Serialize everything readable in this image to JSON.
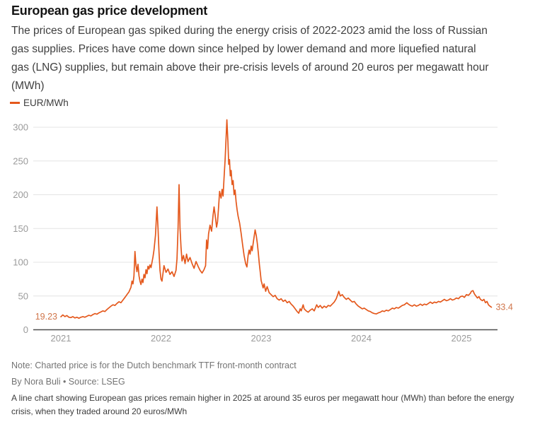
{
  "header": {
    "title": "European gas price development",
    "description": "The prices of European gas spiked during the energy crisis of 2022-2023 amid the loss of Russian gas supplies. Prices have come down since helped by lower demand and more liquefied natural gas (LNG) supplies, but remain above their pre-crisis levels of around 20 euros per megawatt hour (MWh)"
  },
  "legend": {
    "label": "EUR/MWh"
  },
  "colors": {
    "line": "#E4581C",
    "value_label": "#D0754A",
    "grid": "#E4E4E4",
    "axis": "#4D4D4D",
    "tick_text": "#9A9A9A"
  },
  "chart_data": {
    "type": "line",
    "title": "European gas price development",
    "series_name": "EUR/MWh",
    "unit": "EUR/MWh",
    "xlabel": "",
    "ylabel": "EUR/MWh",
    "x_ticks": [
      2021,
      2022,
      2023,
      2024,
      2025
    ],
    "y_ticks": [
      0,
      50,
      100,
      150,
      200,
      250,
      300
    ],
    "ylim": [
      0,
      300
    ],
    "xlim": [
      2021.0,
      2025.35
    ],
    "grid": true,
    "legend_position": "top-left",
    "start_label": "19.23",
    "end_label": "33.4",
    "points": [
      [
        2021.0,
        19.23
      ],
      [
        2021.02,
        22
      ],
      [
        2021.04,
        19.5
      ],
      [
        2021.06,
        21
      ],
      [
        2021.08,
        18.5
      ],
      [
        2021.1,
        18
      ],
      [
        2021.12,
        19.5
      ],
      [
        2021.14,
        17.5
      ],
      [
        2021.16,
        18.5
      ],
      [
        2021.18,
        17
      ],
      [
        2021.2,
        18.5
      ],
      [
        2021.22,
        19.5
      ],
      [
        2021.24,
        18.5
      ],
      [
        2021.26,
        20
      ],
      [
        2021.28,
        21.5
      ],
      [
        2021.3,
        20.5
      ],
      [
        2021.32,
        22.5
      ],
      [
        2021.34,
        24
      ],
      [
        2021.36,
        23
      ],
      [
        2021.38,
        25
      ],
      [
        2021.4,
        26.5
      ],
      [
        2021.42,
        28
      ],
      [
        2021.44,
        27
      ],
      [
        2021.46,
        30
      ],
      [
        2021.48,
        32.5
      ],
      [
        2021.5,
        35
      ],
      [
        2021.52,
        37
      ],
      [
        2021.54,
        36
      ],
      [
        2021.56,
        39
      ],
      [
        2021.58,
        41.5
      ],
      [
        2021.6,
        40
      ],
      [
        2021.62,
        44
      ],
      [
        2021.64,
        48
      ],
      [
        2021.66,
        52
      ],
      [
        2021.68,
        56
      ],
      [
        2021.7,
        63
      ],
      [
        2021.71,
        72
      ],
      [
        2021.72,
        68
      ],
      [
        2021.73,
        80
      ],
      [
        2021.74,
        116
      ],
      [
        2021.75,
        96
      ],
      [
        2021.76,
        86
      ],
      [
        2021.77,
        97
      ],
      [
        2021.78,
        80
      ],
      [
        2021.79,
        72
      ],
      [
        2021.8,
        67
      ],
      [
        2021.81,
        75
      ],
      [
        2021.82,
        70
      ],
      [
        2021.83,
        82
      ],
      [
        2021.84,
        77
      ],
      [
        2021.85,
        89
      ],
      [
        2021.86,
        83
      ],
      [
        2021.87,
        94
      ],
      [
        2021.88,
        90
      ],
      [
        2021.89,
        96
      ],
      [
        2021.9,
        92
      ],
      [
        2021.91,
        100
      ],
      [
        2021.92,
        108
      ],
      [
        2021.93,
        118
      ],
      [
        2021.945,
        140
      ],
      [
        2021.96,
        182
      ],
      [
        2021.97,
        150
      ],
      [
        2021.98,
        115
      ],
      [
        2021.99,
        88
      ],
      [
        2022.0,
        75
      ],
      [
        2022.01,
        72
      ],
      [
        2022.03,
        95
      ],
      [
        2022.05,
        85
      ],
      [
        2022.07,
        90
      ],
      [
        2022.09,
        82
      ],
      [
        2022.11,
        86
      ],
      [
        2022.13,
        79
      ],
      [
        2022.15,
        88
      ],
      [
        2022.16,
        105
      ],
      [
        2022.17,
        150
      ],
      [
        2022.18,
        215
      ],
      [
        2022.19,
        150
      ],
      [
        2022.2,
        122
      ],
      [
        2022.21,
        102
      ],
      [
        2022.225,
        110
      ],
      [
        2022.24,
        98
      ],
      [
        2022.255,
        112
      ],
      [
        2022.27,
        101
      ],
      [
        2022.29,
        107
      ],
      [
        2022.31,
        98
      ],
      [
        2022.33,
        91
      ],
      [
        2022.35,
        101
      ],
      [
        2022.37,
        94
      ],
      [
        2022.39,
        88
      ],
      [
        2022.41,
        84
      ],
      [
        2022.43,
        89
      ],
      [
        2022.445,
        95
      ],
      [
        2022.455,
        133
      ],
      [
        2022.465,
        120
      ],
      [
        2022.475,
        142
      ],
      [
        2022.49,
        155
      ],
      [
        2022.505,
        146
      ],
      [
        2022.52,
        170
      ],
      [
        2022.53,
        182
      ],
      [
        2022.545,
        165
      ],
      [
        2022.555,
        152
      ],
      [
        2022.565,
        160
      ],
      [
        2022.575,
        182
      ],
      [
        2022.585,
        205
      ],
      [
        2022.6,
        195
      ],
      [
        2022.61,
        208
      ],
      [
        2022.62,
        198
      ],
      [
        2022.63,
        225
      ],
      [
        2022.64,
        252
      ],
      [
        2022.65,
        285
      ],
      [
        2022.658,
        311
      ],
      [
        2022.668,
        280
      ],
      [
        2022.676,
        245
      ],
      [
        2022.684,
        252
      ],
      [
        2022.692,
        228
      ],
      [
        2022.7,
        236
      ],
      [
        2022.71,
        215
      ],
      [
        2022.72,
        221
      ],
      [
        2022.73,
        200
      ],
      [
        2022.74,
        207
      ],
      [
        2022.75,
        190
      ],
      [
        2022.76,
        178
      ],
      [
        2022.77,
        168
      ],
      [
        2022.785,
        158
      ],
      [
        2022.8,
        143
      ],
      [
        2022.815,
        126
      ],
      [
        2022.83,
        110
      ],
      [
        2022.845,
        98
      ],
      [
        2022.858,
        93
      ],
      [
        2022.87,
        110
      ],
      [
        2022.88,
        118
      ],
      [
        2022.89,
        112
      ],
      [
        2022.9,
        124
      ],
      [
        2022.91,
        117
      ],
      [
        2022.925,
        133
      ],
      [
        2022.94,
        148
      ],
      [
        2022.952,
        139
      ],
      [
        2022.962,
        128
      ],
      [
        2022.972,
        114
      ],
      [
        2022.982,
        97
      ],
      [
        2022.992,
        84
      ],
      [
        2023.0,
        73
      ],
      [
        2023.02,
        62
      ],
      [
        2023.03,
        68
      ],
      [
        2023.045,
        57
      ],
      [
        2023.06,
        64
      ],
      [
        2023.08,
        55
      ],
      [
        2023.1,
        52
      ],
      [
        2023.12,
        49
      ],
      [
        2023.14,
        51
      ],
      [
        2023.16,
        46
      ],
      [
        2023.18,
        44
      ],
      [
        2023.2,
        46
      ],
      [
        2023.22,
        42
      ],
      [
        2023.24,
        44
      ],
      [
        2023.26,
        40
      ],
      [
        2023.28,
        42
      ],
      [
        2023.3,
        38
      ],
      [
        2023.32,
        35
      ],
      [
        2023.34,
        31
      ],
      [
        2023.36,
        27
      ],
      [
        2023.375,
        24.5
      ],
      [
        2023.39,
        31
      ],
      [
        2023.4,
        28
      ],
      [
        2023.42,
        37
      ],
      [
        2023.43,
        31
      ],
      [
        2023.45,
        28
      ],
      [
        2023.47,
        26
      ],
      [
        2023.49,
        29
      ],
      [
        2023.51,
        31
      ],
      [
        2023.53,
        28
      ],
      [
        2023.555,
        37
      ],
      [
        2023.57,
        33
      ],
      [
        2023.59,
        36
      ],
      [
        2023.61,
        32
      ],
      [
        2023.63,
        35
      ],
      [
        2023.65,
        33
      ],
      [
        2023.67,
        36
      ],
      [
        2023.69,
        35
      ],
      [
        2023.71,
        38
      ],
      [
        2023.73,
        41
      ],
      [
        2023.75,
        46
      ],
      [
        2023.765,
        52
      ],
      [
        2023.775,
        57
      ],
      [
        2023.79,
        50
      ],
      [
        2023.81,
        52
      ],
      [
        2023.83,
        48
      ],
      [
        2023.85,
        45
      ],
      [
        2023.87,
        47
      ],
      [
        2023.89,
        44
      ],
      [
        2023.91,
        41
      ],
      [
        2023.93,
        42
      ],
      [
        2023.95,
        38
      ],
      [
        2023.97,
        35
      ],
      [
        2023.99,
        33
      ],
      [
        2024.01,
        31
      ],
      [
        2024.03,
        32
      ],
      [
        2024.05,
        30
      ],
      [
        2024.07,
        28
      ],
      [
        2024.09,
        27
      ],
      [
        2024.11,
        25
      ],
      [
        2024.13,
        24
      ],
      [
        2024.15,
        23.5
      ],
      [
        2024.17,
        25
      ],
      [
        2024.19,
        26
      ],
      [
        2024.21,
        28
      ],
      [
        2024.23,
        27
      ],
      [
        2024.25,
        29
      ],
      [
        2024.27,
        28
      ],
      [
        2024.29,
        30
      ],
      [
        2024.31,
        32
      ],
      [
        2024.33,
        31
      ],
      [
        2024.35,
        33
      ],
      [
        2024.37,
        32
      ],
      [
        2024.39,
        34
      ],
      [
        2024.41,
        36
      ],
      [
        2024.43,
        37
      ],
      [
        2024.455,
        40
      ],
      [
        2024.47,
        38
      ],
      [
        2024.49,
        36
      ],
      [
        2024.51,
        35
      ],
      [
        2024.53,
        37
      ],
      [
        2024.55,
        35
      ],
      [
        2024.57,
        36
      ],
      [
        2024.59,
        38
      ],
      [
        2024.61,
        36
      ],
      [
        2024.63,
        38
      ],
      [
        2024.65,
        37
      ],
      [
        2024.67,
        39
      ],
      [
        2024.69,
        41
      ],
      [
        2024.71,
        39
      ],
      [
        2024.73,
        41
      ],
      [
        2024.75,
        40
      ],
      [
        2024.77,
        42
      ],
      [
        2024.79,
        41
      ],
      [
        2024.81,
        43
      ],
      [
        2024.83,
        45
      ],
      [
        2024.85,
        43
      ],
      [
        2024.87,
        44
      ],
      [
        2024.89,
        46
      ],
      [
        2024.91,
        44
      ],
      [
        2024.93,
        45
      ],
      [
        2024.95,
        47
      ],
      [
        2024.97,
        46
      ],
      [
        2024.99,
        49
      ],
      [
        2025.01,
        50
      ],
      [
        2025.03,
        48
      ],
      [
        2025.05,
        52
      ],
      [
        2025.07,
        51
      ],
      [
        2025.09,
        54
      ],
      [
        2025.1,
        57
      ],
      [
        2025.115,
        58
      ],
      [
        2025.13,
        53
      ],
      [
        2025.145,
        50
      ],
      [
        2025.16,
        47
      ],
      [
        2025.175,
        49
      ],
      [
        2025.19,
        45
      ],
      [
        2025.21,
        43
      ],
      [
        2025.225,
        45
      ],
      [
        2025.24,
        40
      ],
      [
        2025.255,
        42
      ],
      [
        2025.27,
        37
      ],
      [
        2025.285,
        35
      ],
      [
        2025.3,
        33.4
      ]
    ]
  },
  "footer": {
    "note": "Note: Charted price is for the Dutch benchmark TTF front-month contract",
    "byline": "By Nora Buli • Source: LSEG",
    "alt_text": "A line chart showing European gas prices remain higher in 2025 at around 35 euros per megawatt hour (MWh) than before the energy crisis, when they traded around 20 euros/MWh"
  }
}
